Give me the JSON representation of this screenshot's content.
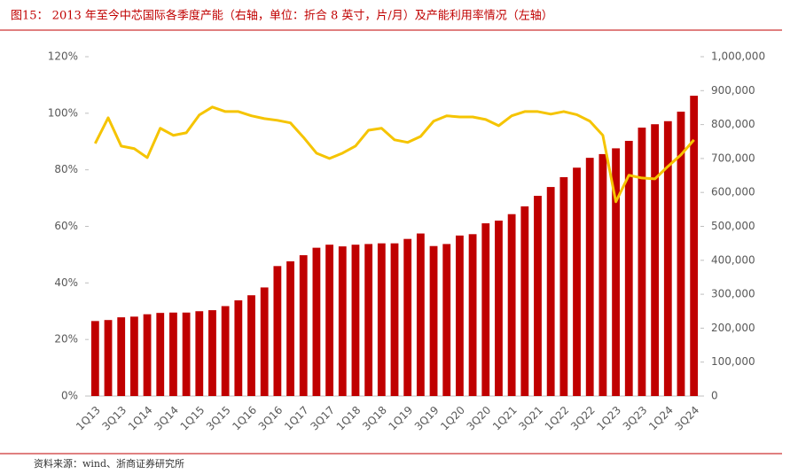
{
  "chart_data": {
    "type": "bar_line",
    "title": "图15： 2013 年至今中芯国际各季度产能（右轴，单位：折合 8 英寸，片/月）及产能利用率情况（左轴）",
    "source": "资料来源：wind、浙商证券研究所",
    "categories": [
      "1Q13",
      null,
      "3Q13",
      null,
      "1Q14",
      null,
      "3Q14",
      null,
      "1Q15",
      null,
      "3Q15",
      null,
      "1Q16",
      null,
      "3Q16",
      null,
      "1Q17",
      null,
      "3Q17",
      null,
      "1Q18",
      null,
      "3Q18",
      null,
      "1Q19",
      null,
      "3Q19",
      null,
      "1Q20",
      null,
      "3Q20",
      null,
      "1Q21",
      null,
      "3Q21",
      null,
      "1Q22",
      null,
      "3Q22",
      null,
      "1Q23",
      null,
      "3Q23",
      null,
      "1Q24",
      null,
      "3Q24"
    ],
    "series": [
      {
        "type": "bar",
        "axis": "y2",
        "color": "#c00000",
        "values": [
          221000,
          224000,
          232000,
          234000,
          241000,
          245000,
          246000,
          246000,
          250000,
          253000,
          265000,
          282000,
          297000,
          320000,
          383000,
          397000,
          415000,
          437000,
          446000,
          441000,
          446000,
          448000,
          450000,
          450000,
          463000,
          479000,
          442000,
          448000,
          473000,
          477000,
          509000,
          517000,
          536000,
          559000,
          590000,
          616000,
          645000,
          673000,
          702000,
          713000,
          730000,
          752000,
          791000,
          801000,
          810000,
          838000,
          885000
        ]
      },
      {
        "type": "line",
        "axis": "y",
        "color": "#f5c400",
        "values": [
          89.3,
          98.4,
          88.4,
          87.5,
          84.3,
          94.7,
          92.2,
          93.1,
          99.4,
          102.2,
          100.6,
          100.6,
          99.1,
          98.1,
          97.5,
          96.6,
          91.5,
          85.9,
          84.0,
          85.9,
          88.4,
          94.0,
          94.7,
          90.6,
          89.7,
          91.8,
          97.2,
          99.1,
          98.7,
          98.7,
          97.8,
          95.6,
          99.1,
          100.6,
          100.6,
          99.7,
          100.6,
          99.5,
          97.2,
          92.2,
          68.7,
          78.1,
          77.1,
          76.8,
          81.2,
          85.3,
          90.6
        ]
      }
    ],
    "ylim": [
      0,
      120
    ],
    "yticks": [
      {
        "value": 0,
        "label": "0%"
      },
      {
        "value": 20,
        "label": "20%"
      },
      {
        "value": 40,
        "label": "40%"
      },
      {
        "value": 60,
        "label": "60%"
      },
      {
        "value": 80,
        "label": "80%"
      },
      {
        "value": 100,
        "label": "100%"
      },
      {
        "value": 120,
        "label": "120%"
      }
    ],
    "y2lim": [
      0,
      1000000
    ],
    "y2ticks": [
      0,
      {
        "value": 100000,
        "label": "100,000"
      },
      {
        "value": 200000,
        "label": "200,000"
      },
      {
        "value": 300000,
        "label": "300,000"
      },
      {
        "value": 400000,
        "label": "400,000"
      },
      {
        "value": 500000,
        "label": "500,000"
      },
      {
        "value": 600000,
        "label": "600,000"
      },
      {
        "value": 700000,
        "label": "700,000"
      },
      {
        "value": 800000,
        "label": "800,000"
      },
      {
        "value": 900000,
        "label": "900,000"
      },
      {
        "value": 1000000,
        "label": "1,000,000"
      }
    ]
  }
}
